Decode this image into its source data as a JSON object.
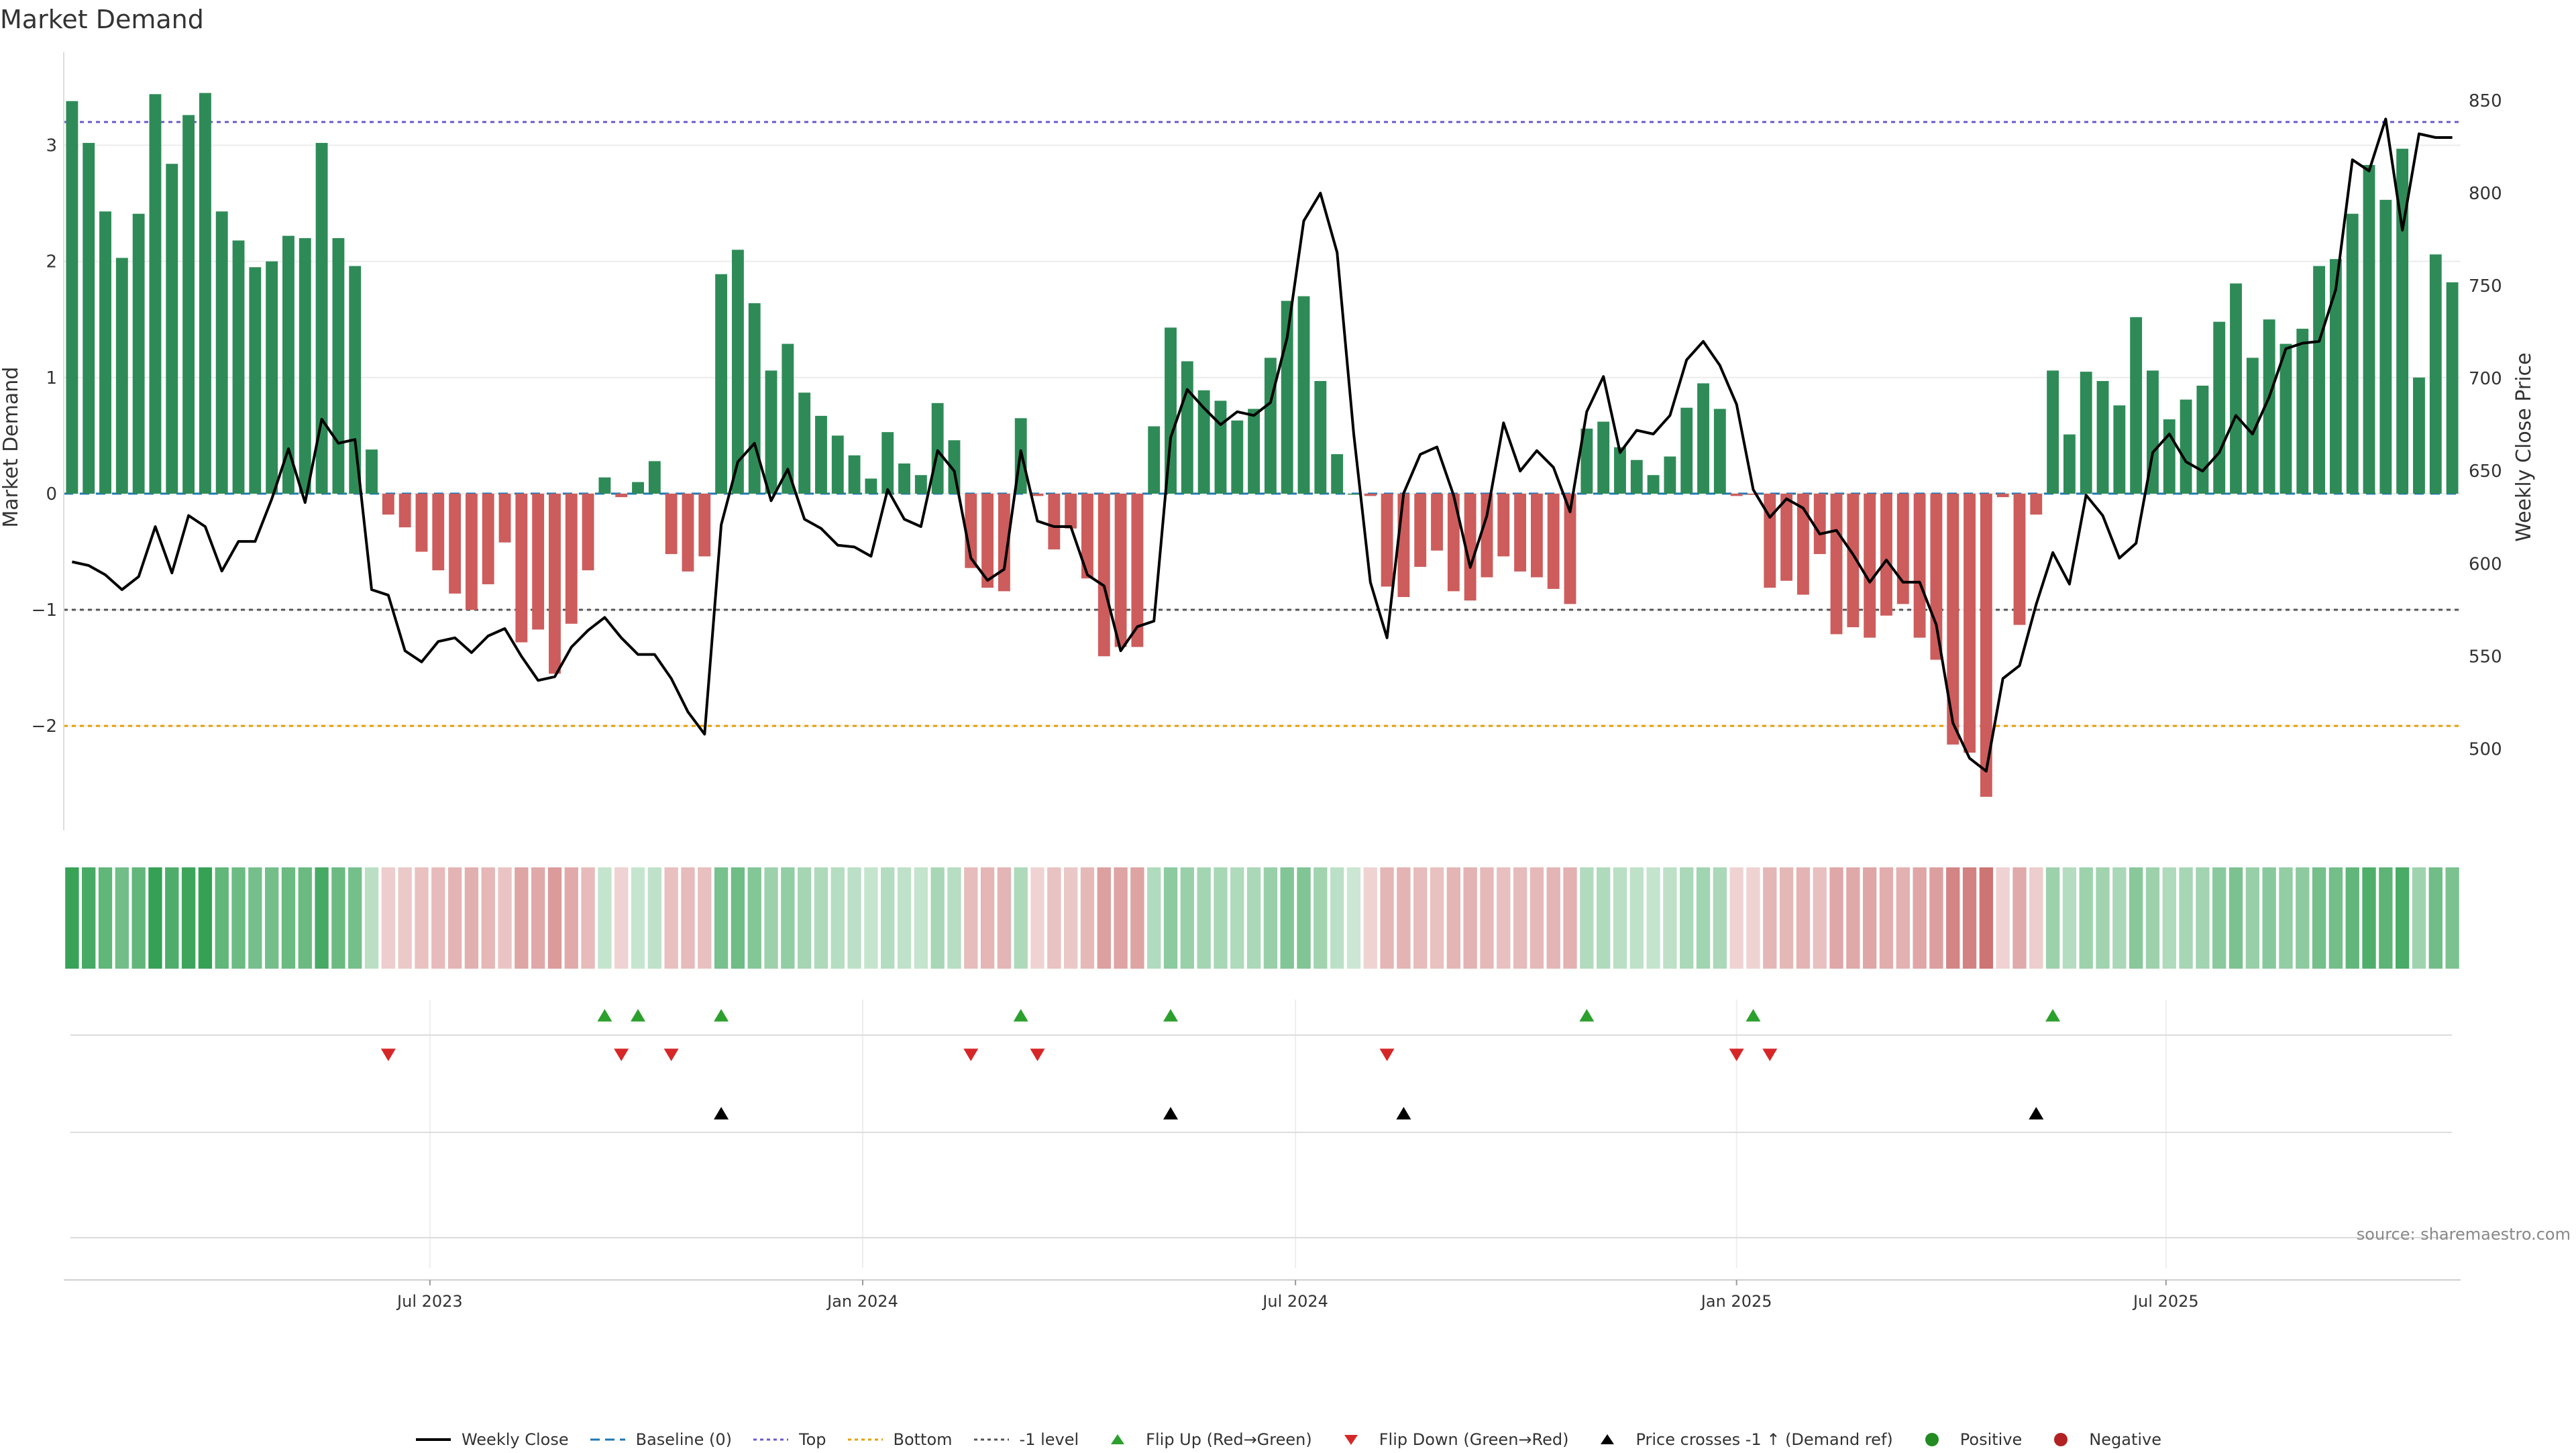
{
  "title": "Market Demand",
  "source": "source: sharemaestro.com",
  "colors": {
    "positive_bar": "#2E8B57",
    "negative_bar": "#CD5C5C",
    "price_line": "#000000",
    "baseline": "#1f77b4",
    "top_line": "#6a5acd",
    "bottom_line": "#E69F00",
    "minus_one_line": "#555555",
    "flip_up": "#2ca02c",
    "flip_down": "#d62728",
    "cross": "#000000",
    "positive_dot": "#228B22",
    "negative_dot": "#B22222"
  },
  "chart_data": {
    "type": "bar",
    "title": "Market Demand",
    "ylabel": "Market Demand",
    "y2label": "Weekly Close Price",
    "ylim": [
      -2.9,
      3.8
    ],
    "y2lim": [
      456,
      876
    ],
    "yticks": [
      -2,
      -1,
      0,
      1,
      2,
      3
    ],
    "ytick_labels": [
      "−2",
      "−1",
      "0",
      "1",
      "2",
      "3"
    ],
    "y2ticks": [
      500,
      550,
      600,
      650,
      700,
      750,
      800,
      850
    ],
    "reference_lines": {
      "top": 3.2,
      "bottom": -2.0,
      "minus_one": -1.0,
      "baseline": 0
    },
    "x_tick_labels": [
      "Jul 2023",
      "Jan 2024",
      "Jul 2024",
      "Jan 2025",
      "Jul 2025"
    ],
    "x_tick_positions": [
      22,
      48,
      74,
      100.5,
      126.3
    ],
    "n_weeks": 144,
    "demand": [
      3.38,
      3.02,
      2.43,
      2.03,
      2.41,
      3.44,
      2.84,
      3.26,
      3.45,
      2.43,
      2.18,
      1.95,
      2.0,
      2.22,
      2.2,
      3.02,
      2.2,
      1.96,
      0.38,
      -0.18,
      -0.29,
      -0.5,
      -0.66,
      -0.86,
      -1.0,
      -0.78,
      -0.42,
      -1.28,
      -1.17,
      -1.55,
      -1.12,
      -0.66,
      0.14,
      -0.03,
      0.1,
      0.28,
      -0.52,
      -0.67,
      -0.54,
      1.89,
      2.1,
      1.64,
      1.06,
      1.29,
      0.87,
      0.67,
      0.5,
      0.33,
      0.13,
      0.53,
      0.26,
      0.16,
      0.78,
      0.46,
      -0.64,
      -0.81,
      -0.84,
      0.65,
      -0.02,
      -0.48,
      -0.3,
      -0.73,
      -1.4,
      -1.32,
      -1.32,
      0.58,
      1.43,
      1.14,
      0.89,
      0.8,
      0.63,
      0.73,
      1.17,
      1.66,
      1.7,
      0.97,
      0.34,
      0.0,
      -0.02,
      -0.8,
      -0.89,
      -0.63,
      -0.49,
      -0.84,
      -0.92,
      -0.72,
      -0.54,
      -0.67,
      -0.72,
      -0.82,
      -0.95,
      0.56,
      0.62,
      0.4,
      0.29,
      0.16,
      0.32,
      0.74,
      0.95,
      0.73,
      -0.02,
      -0.01,
      -0.81,
      -0.75,
      -0.87,
      -0.52,
      -1.21,
      -1.15,
      -1.24,
      -1.05,
      -0.95,
      -1.24,
      -1.43,
      -2.16,
      -2.23,
      -2.61,
      -0.03,
      -1.13,
      -0.18,
      1.06,
      0.51,
      1.05,
      0.97,
      0.76,
      1.52,
      1.06,
      0.64,
      0.81,
      0.93,
      1.48,
      1.81,
      1.17,
      1.5,
      1.29,
      1.42,
      1.96,
      2.02,
      2.41,
      2.83,
      2.53,
      2.97,
      1.0,
      2.06,
      1.82
    ],
    "price": [
      601,
      599,
      594,
      586,
      593,
      620,
      595,
      626,
      620,
      596,
      612,
      612,
      635,
      662,
      633,
      678,
      665,
      667,
      586,
      583,
      553,
      547,
      558,
      560,
      552,
      561,
      565,
      550,
      537,
      539,
      555,
      564,
      571,
      560,
      551,
      551,
      538,
      520,
      508,
      621,
      655,
      665,
      634,
      651,
      624,
      619,
      610,
      609,
      604,
      640,
      624,
      620,
      661,
      650,
      603,
      591,
      597,
      661,
      623,
      620,
      620,
      594,
      588,
      553,
      566,
      569,
      668,
      694,
      684,
      675,
      682,
      680,
      687,
      722,
      785,
      800,
      768,
      670,
      590,
      560,
      638,
      659,
      663,
      637,
      598,
      626,
      676,
      650,
      661,
      652,
      628,
      682,
      701,
      660,
      672,
      670,
      680,
      710,
      720,
      707,
      686,
      640,
      625,
      635,
      630,
      616,
      618,
      605,
      590,
      602,
      590,
      590,
      567,
      514,
      495,
      488,
      538,
      545,
      578,
      606,
      589,
      637,
      626,
      603,
      611,
      660,
      670,
      655,
      650,
      660,
      680,
      670,
      690,
      716,
      719,
      720,
      748,
      818,
      812,
      840,
      780,
      832,
      830,
      830
    ],
    "flip_up_weeks": [
      32,
      34,
      39,
      57,
      66,
      91,
      101,
      119
    ],
    "flip_down_weeks": [
      19,
      33,
      36,
      54,
      58,
      79,
      100,
      102
    ],
    "price_cross_weeks": [
      39,
      66,
      80,
      118
    ],
    "legend": [
      {
        "label": "Weekly Close",
        "kind": "line",
        "color": "#000000"
      },
      {
        "label": "Baseline (0)",
        "kind": "dashed",
        "color": "#1f77b4"
      },
      {
        "label": "Top",
        "kind": "dotted",
        "color": "#6a5acd"
      },
      {
        "label": "Bottom",
        "kind": "dotted",
        "color": "#E69F00"
      },
      {
        "label": "-1 level",
        "kind": "dotted",
        "color": "#555555"
      },
      {
        "label": "Flip Up (Red→Green)",
        "kind": "tri-up",
        "color": "#2ca02c"
      },
      {
        "label": "Flip Down (Green→Red)",
        "kind": "tri-down",
        "color": "#d62728"
      },
      {
        "label": "Price crosses -1 ↑ (Demand ref)",
        "kind": "tri-up",
        "color": "#000000"
      },
      {
        "label": "Positive",
        "kind": "dot",
        "color": "#228B22"
      },
      {
        "label": "Negative",
        "kind": "dot",
        "color": "#B22222"
      }
    ]
  }
}
